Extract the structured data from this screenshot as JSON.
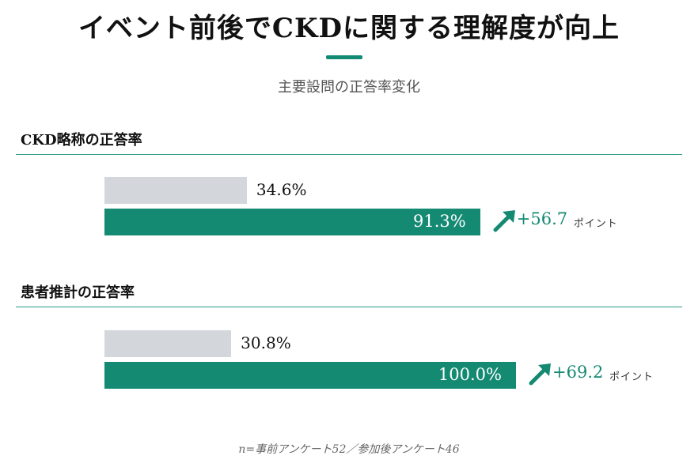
{
  "title": "イベント前後でCKDに関する理解度が向上",
  "subtitle": "主要設問の正答率変化",
  "footnote": "n=事前アンケート52／参加後アンケート46",
  "colors": {
    "accent": "#158a73",
    "before_bar": "#d3d7dc",
    "rule": "#2e9a86"
  },
  "chart_data": {
    "type": "bar",
    "orientation": "horizontal",
    "groups": [
      {
        "title": "CKD略称の正答率",
        "before": 34.6,
        "before_label": "34.6%",
        "after": 91.3,
        "after_label": "91.3%",
        "change": 56.7,
        "change_label": "+56.7",
        "change_unit": "ポイント"
      },
      {
        "title": "患者推計の正答率",
        "before": 30.8,
        "before_label": "30.8%",
        "after": 100.0,
        "after_label": "100.0%",
        "change": 69.2,
        "change_label": "+69.2",
        "change_unit": "ポイント"
      }
    ],
    "xlim": [
      0,
      100
    ]
  }
}
